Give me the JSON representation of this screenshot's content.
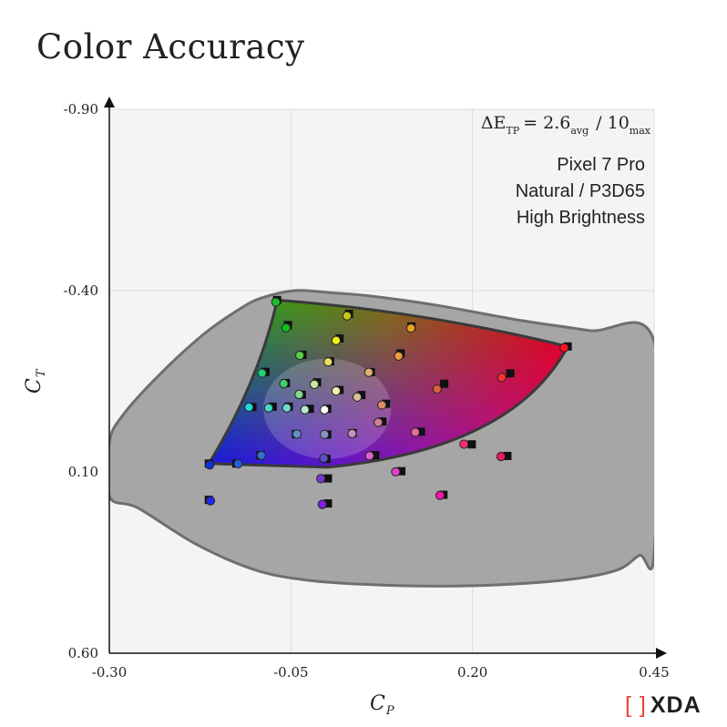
{
  "title": "Color Accuracy",
  "logo": {
    "text": "XDA",
    "bracket": "[ ]"
  },
  "chart_data": {
    "type": "scatter",
    "xlabel": "C",
    "xlabel_sub": "P",
    "ylabel": "C",
    "ylabel_sub": "T",
    "xlim": [
      -0.3,
      0.45
    ],
    "ylim": [
      -0.9,
      0.6
    ],
    "y_inverted": true,
    "x_ticks": [
      "-0.30",
      "-0.05",
      "0.20",
      "0.45"
    ],
    "y_ticks": [
      "-0.90",
      "-0.40",
      "0.10",
      "0.60"
    ],
    "x_tick_values": [
      -0.3,
      -0.05,
      0.2,
      0.45
    ],
    "y_tick_values": [
      -0.9,
      -0.4,
      0.1,
      0.6
    ],
    "grid": true,
    "background_color": "#f4f4f4",
    "locus_color": "#a6a6a6",
    "annotation_delta": {
      "symbol": "ΔE",
      "symbol_sub": "TP",
      "equals": "= 2.6",
      "avg_sub": "avg",
      "slash": "/ 10",
      "max_sub": "max"
    },
    "annotation_lines": [
      "Pixel 7 Pro",
      "Natural / P3D65",
      "High Brightness"
    ],
    "gamut_corners": {
      "green": [
        -0.069,
        -0.374
      ],
      "red": [
        0.331,
        -0.246
      ],
      "blue": [
        -0.163,
        0.077
      ],
      "violet": [
        0.001,
        0.087
      ]
    },
    "spectral_locus": [
      [
        -0.3,
        0.018
      ],
      [
        -0.28,
        -0.06
      ],
      [
        -0.23,
        -0.17
      ],
      [
        -0.17,
        -0.28
      ],
      [
        -0.12,
        -0.35
      ],
      [
        -0.09,
        -0.38
      ],
      [
        -0.045,
        -0.4
      ],
      [
        0.0,
        -0.395
      ],
      [
        0.06,
        -0.385
      ],
      [
        0.15,
        -0.36
      ],
      [
        0.26,
        -0.32
      ],
      [
        0.36,
        -0.29
      ],
      [
        0.45,
        -0.26
      ],
      [
        0.45,
        0.325
      ],
      [
        0.43,
        0.33
      ],
      [
        0.4,
        0.37
      ],
      [
        0.34,
        0.395
      ],
      [
        0.25,
        0.41
      ],
      [
        0.15,
        0.415
      ],
      [
        0.05,
        0.41
      ],
      [
        -0.03,
        0.398
      ],
      [
        -0.1,
        0.37
      ],
      [
        -0.18,
        0.3
      ],
      [
        -0.26,
        0.2
      ],
      [
        -0.3,
        0.167
      ]
    ],
    "points": [
      {
        "target": [
          -0.069,
          -0.374
        ],
        "measured": [
          -0.067,
          -0.371
        ],
        "color": "#18c030"
      },
      {
        "target": [
          0.03,
          -0.336
        ],
        "measured": [
          0.031,
          -0.333
        ],
        "color": "#c8c810"
      },
      {
        "target": [
          0.116,
          -0.301
        ],
        "measured": [
          0.119,
          -0.299
        ],
        "color": "#f0a020"
      },
      {
        "target": [
          0.331,
          -0.246
        ],
        "measured": [
          0.33,
          -0.245
        ],
        "color": "#ff1020"
      },
      {
        "target": [
          -0.054,
          -0.305
        ],
        "measured": [
          -0.053,
          -0.3
        ],
        "color": "#10c020"
      },
      {
        "target": [
          0.017,
          -0.268
        ],
        "measured": [
          0.016,
          -0.265
        ],
        "color": "#f2f210"
      },
      {
        "target": [
          0.101,
          -0.227
        ],
        "measured": [
          0.102,
          -0.222
        ],
        "color": "#f09a40"
      },
      {
        "target": [
          -0.034,
          -0.223
        ],
        "measured": [
          -0.034,
          -0.224
        ],
        "color": "#55d045"
      },
      {
        "target": [
          0.004,
          -0.205
        ],
        "measured": [
          0.005,
          -0.206
        ],
        "color": "#e8e060"
      },
      {
        "target": [
          0.06,
          -0.175
        ],
        "measured": [
          0.061,
          -0.177
        ],
        "color": "#e0b070"
      },
      {
        "target": [
          0.161,
          -0.143
        ],
        "measured": [
          0.155,
          -0.131
        ],
        "color": "#e06035"
      },
      {
        "target": [
          0.252,
          -0.172
        ],
        "measured": [
          0.244,
          -0.163
        ],
        "color": "#ff3030"
      },
      {
        "target": [
          -0.085,
          -0.176
        ],
        "measured": [
          -0.086,
          -0.175
        ],
        "color": "#20d070"
      },
      {
        "target": [
          -0.057,
          -0.145
        ],
        "measured": [
          -0.056,
          -0.146
        ],
        "color": "#40d070"
      },
      {
        "target": [
          -0.035,
          -0.113
        ],
        "measured": [
          -0.035,
          -0.116
        ],
        "color": "#80dc90"
      },
      {
        "target": [
          -0.014,
          -0.147
        ],
        "measured": [
          -0.014,
          -0.144
        ],
        "color": "#c2e8a0"
      },
      {
        "target": [
          0.017,
          -0.126
        ],
        "measured": [
          0.016,
          -0.126
        ],
        "color": "#f0f0a8"
      },
      {
        "target": [
          0.047,
          -0.112
        ],
        "measured": [
          0.045,
          -0.109
        ],
        "color": "#d8c098"
      },
      {
        "target": [
          0.081,
          -0.088
        ],
        "measured": [
          0.079,
          -0.087
        ],
        "color": "#d8906a"
      },
      {
        "target": [
          -0.103,
          -0.079
        ],
        "measured": [
          -0.104,
          -0.081
        ],
        "color": "#20d8d8"
      },
      {
        "target": [
          -0.075,
          -0.08
        ],
        "measured": [
          -0.077,
          -0.079
        ],
        "color": "#45d8c8"
      },
      {
        "target": [
          -0.053,
          -0.08
        ],
        "measured": [
          -0.052,
          -0.079
        ],
        "color": "#70dcd0"
      },
      {
        "target": [
          -0.024,
          -0.074
        ],
        "measured": [
          -0.027,
          -0.074
        ],
        "color": "#b8e8d0"
      },
      {
        "target": [
          0.0,
          -0.074
        ],
        "measured": [
          0.0,
          -0.074
        ],
        "color": "#ffffff"
      },
      {
        "target": [
          -0.043,
          -0.004
        ],
        "measured": [
          -0.038,
          -0.007
        ],
        "color": "#6090c8"
      },
      {
        "target": [
          0.0,
          -0.003
        ],
        "measured": [
          0.0,
          -0.006
        ],
        "color": "#8890c8"
      },
      {
        "target": [
          0.035,
          -0.007
        ],
        "measured": [
          0.038,
          -0.008
        ],
        "color": "#c890c0"
      },
      {
        "target": [
          0.076,
          -0.039
        ],
        "measured": [
          0.074,
          -0.039
        ],
        "color": "#d08090"
      },
      {
        "target": [
          0.129,
          -0.011
        ],
        "measured": [
          0.125,
          -0.012
        ],
        "color": "#e070a0"
      },
      {
        "target": [
          0.199,
          0.024
        ],
        "measured": [
          0.192,
          0.021
        ],
        "color": "#ff3070"
      },
      {
        "target": [
          0.248,
          0.056
        ],
        "measured": [
          0.243,
          0.055
        ],
        "color": "#f01868"
      },
      {
        "target": [
          -0.125,
          0.077
        ],
        "measured": [
          -0.119,
          0.075
        ],
        "color": "#2060d8"
      },
      {
        "target": [
          -0.092,
          0.054
        ],
        "measured": [
          -0.087,
          0.052
        ],
        "color": "#3070d8"
      },
      {
        "target": [
          -0.001,
          0.064
        ],
        "measured": [
          -0.001,
          0.06
        ],
        "color": "#6050c8"
      },
      {
        "target": [
          0.001,
          0.118
        ],
        "measured": [
          -0.005,
          0.116
        ],
        "color": "#7838d8"
      },
      {
        "target": [
          0.066,
          0.054
        ],
        "measured": [
          0.062,
          0.053
        ],
        "color": "#e060d0"
      },
      {
        "target": [
          0.102,
          0.098
        ],
        "measured": [
          0.098,
          0.097
        ],
        "color": "#e040c8"
      },
      {
        "target": [
          0.16,
          0.163
        ],
        "measured": [
          0.159,
          0.162
        ],
        "color": "#ff10b0"
      },
      {
        "target": [
          -0.163,
          0.077
        ],
        "measured": [
          -0.158,
          0.078
        ],
        "color": "#1030e0"
      },
      {
        "target": [
          0.001,
          0.187
        ],
        "measured": [
          -0.003,
          0.187
        ],
        "color": "#8020e0"
      },
      {
        "target": [
          -0.163,
          0.177
        ],
        "measured": [
          -0.157,
          0.177
        ],
        "color": "#2028f0"
      }
    ]
  }
}
